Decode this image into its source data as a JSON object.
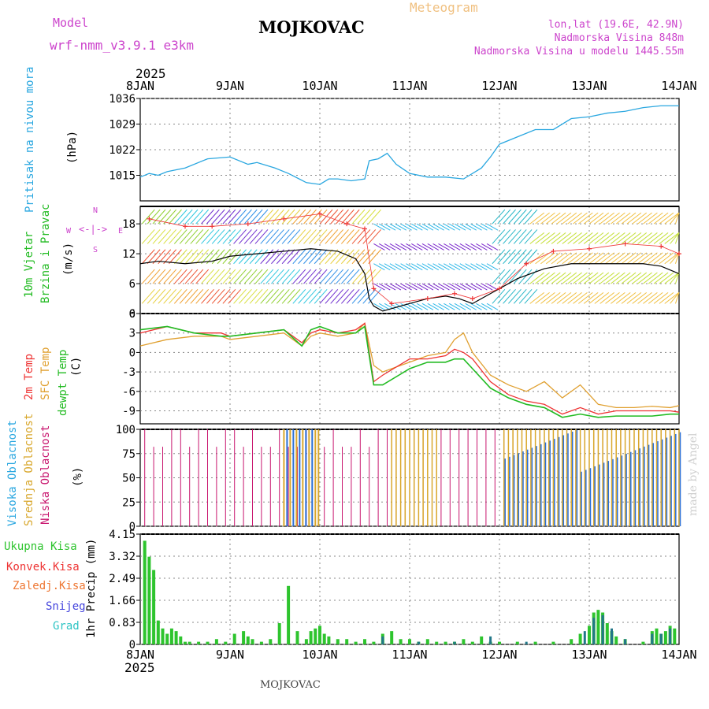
{
  "header": {
    "model_label": "Model",
    "model_name": "wrf-nmm_v3.9.1 e3km",
    "station": "MOJKOVAC",
    "title": "Meteogram",
    "coords": "lon,lat (19.6E, 42.9N)",
    "elevation": "Nadmorska Visina 848m",
    "model_elevation": "Nadmorska Visina u modelu 1445.55m",
    "footer_station": "MOJKOVAC",
    "watermark": "made by Angel",
    "year_top": "2025",
    "year_bottom": "2025"
  },
  "colors": {
    "pressure": "#2aa7e0",
    "wind_label": "#22bb22",
    "temp2m": "#ee3333",
    "sfc": "#e0a030",
    "dew": "#22bb22",
    "high": "#2a6fd6",
    "mid": "#d8a72c",
    "low": "#c8156e",
    "total": "#2ec42e",
    "conv": "#ee3333",
    "frozen": "#ee7733",
    "snow": "#4444dd",
    "hail": "#2ec4c4",
    "compass": "#cc44cc"
  },
  "chart_data": {
    "x_dates": [
      "8JAN",
      "9JAN",
      "10JAN",
      "11JAN",
      "12JAN",
      "13JAN",
      "14JAN"
    ],
    "pressure": {
      "type": "line",
      "name_label": "Pritisak na nivou mora",
      "unit": "(hPa)",
      "ylim": [
        1008,
        1036
      ],
      "ticks": [
        1015,
        1022,
        1029,
        1036
      ],
      "x": [
        0,
        0.1,
        0.2,
        0.3,
        0.5,
        0.75,
        1.0,
        1.2,
        1.3,
        1.5,
        1.65,
        1.85,
        2.0,
        2.1,
        2.2,
        2.35,
        2.5,
        2.55,
        2.65,
        2.75,
        2.85,
        3.0,
        3.2,
        3.4,
        3.6,
        3.8,
        3.9,
        4.0,
        4.2,
        4.4,
        4.6,
        4.8,
        5.0,
        5.2,
        5.4,
        5.6,
        5.8,
        5.95,
        6.0
      ],
      "y": [
        1014.5,
        1015.5,
        1015,
        1016,
        1017,
        1019.5,
        1020,
        1018,
        1018.5,
        1017,
        1015.5,
        1013,
        1012.5,
        1014,
        1014,
        1013.5,
        1014,
        1019,
        1019.5,
        1021,
        1018,
        1015.5,
        1014.5,
        1014.5,
        1014,
        1017,
        1020,
        1023.5,
        1025.5,
        1027.5,
        1027.5,
        1030.5,
        1031,
        1032,
        1032.5,
        1033.5,
        1034,
        1034,
        1034
      ]
    },
    "wind": {
      "type": "line",
      "name_label": [
        "10m Vjetar",
        "Brzina i Pravac"
      ],
      "unit": "(m/s)",
      "ylim": [
        0,
        21.5
      ],
      "ticks": [
        0,
        6,
        12,
        18
      ],
      "compass": {
        "n": "N",
        "s": "S",
        "w": "W",
        "e": "E"
      },
      "x": [
        0,
        0.2,
        0.5,
        0.8,
        1.0,
        1.3,
        1.6,
        1.9,
        2.2,
        2.4,
        2.5,
        2.55,
        2.6,
        2.7,
        2.8,
        3.0,
        3.2,
        3.4,
        3.55,
        3.7,
        3.8,
        4.0,
        4.2,
        4.5,
        4.8,
        5.0,
        5.3,
        5.6,
        5.8,
        6.0
      ],
      "y": [
        10,
        10.5,
        10,
        10.5,
        11.5,
        12,
        12.5,
        13,
        12.5,
        11,
        8,
        3,
        1.5,
        0.5,
        1,
        2,
        3,
        3.5,
        3,
        2,
        3,
        5,
        7,
        9,
        10,
        10,
        10,
        10,
        9.5,
        8
      ],
      "gust_x": [
        0.1,
        0.5,
        0.8,
        1.2,
        1.6,
        2.0,
        2.3,
        2.5,
        2.6,
        2.8,
        3.2,
        3.5,
        3.7,
        4.0,
        4.3,
        4.6,
        5.0,
        5.4,
        5.8,
        6.0
      ],
      "gust_y": [
        19,
        17.5,
        17.5,
        18,
        19,
        20,
        18,
        17,
        5,
        2,
        3,
        4,
        3,
        5,
        10,
        12.5,
        13,
        14,
        13.5,
        12
      ]
    },
    "temperature": {
      "type": "line",
      "labels": [
        "2m Temp",
        "SFC Temp",
        "dewpt Temp"
      ],
      "unit": "(C)",
      "ylim": [
        -11,
        6
      ],
      "ticks": [
        -9,
        -6,
        -3,
        0,
        3,
        6
      ],
      "x": [
        0,
        0.3,
        0.6,
        0.9,
        1.0,
        1.3,
        1.6,
        1.8,
        1.9,
        2.0,
        2.2,
        2.4,
        2.5,
        2.6,
        2.7,
        3.0,
        3.2,
        3.4,
        3.5,
        3.6,
        3.7,
        3.9,
        4.1,
        4.3,
        4.5,
        4.7,
        4.9,
        5.1,
        5.3,
        5.5,
        5.7,
        5.9,
        6.0
      ],
      "t2m": [
        3,
        4,
        3,
        3,
        2.5,
        3,
        3.5,
        1.5,
        3,
        3.5,
        3,
        3.5,
        4.5,
        -4.5,
        -3.5,
        -1,
        -1,
        -0.5,
        0.5,
        0,
        -1,
        -4.5,
        -6.5,
        -7.5,
        -8,
        -9.5,
        -8.5,
        -9.5,
        -9,
        -9,
        -9,
        -9,
        -9.2
      ],
      "sfc": [
        1,
        2,
        2.5,
        2.5,
        2,
        2.5,
        3,
        1,
        2.5,
        3,
        2.5,
        3,
        4.5,
        -2,
        -3,
        -1.5,
        -0.5,
        0,
        2,
        3,
        0,
        -3.5,
        -5,
        -6,
        -4.5,
        -7,
        -5,
        -8,
        -8.5,
        -8.5,
        -8.3,
        -8.5,
        -8.2
      ],
      "dew": [
        3.5,
        4,
        3,
        2.5,
        2.5,
        3,
        3.5,
        1,
        3.5,
        4,
        3,
        3,
        4,
        -5,
        -5,
        -2.5,
        -1.5,
        -1.5,
        -1,
        -1,
        -2.5,
        -5.5,
        -7,
        -8,
        -8.5,
        -10,
        -9.5,
        -10,
        -9.8,
        -9.8,
        -9.8,
        -9.5,
        -9.5
      ]
    },
    "clouds": {
      "type": "bar",
      "labels": [
        "Visoka Oblacnost",
        "Srednja Oblacnost",
        "Niska Oblacnost"
      ],
      "unit": "(%)",
      "ylim": [
        0,
        100
      ],
      "ticks": [
        0,
        25,
        50,
        75,
        100
      ]
    },
    "precip": {
      "type": "bar",
      "labels": [
        "Ukupna Kisa",
        "Konvek.Kisa",
        "Zaledj.Kisa",
        "Snijeg",
        "Grad"
      ],
      "unit": "1hr Precip (mm)",
      "ylim": [
        0,
        4.15
      ],
      "ticks": [
        "0",
        "0.83",
        "1.66",
        "2.49",
        "3.32",
        "4.15"
      ],
      "total_x": [
        0.05,
        0.1,
        0.15,
        0.2,
        0.25,
        0.3,
        0.35,
        0.4,
        0.45,
        0.5,
        0.55,
        0.65,
        0.75,
        0.85,
        0.95,
        1.05,
        1.15,
        1.2,
        1.25,
        1.35,
        1.45,
        1.55,
        1.65,
        1.75,
        1.85,
        1.9,
        1.95,
        2.0,
        2.05,
        2.1,
        2.2,
        2.3,
        2.4,
        2.5,
        2.6,
        2.7,
        2.8,
        2.9,
        3.0,
        3.1,
        3.2,
        3.3,
        3.4,
        3.5,
        3.6,
        3.7,
        3.8,
        3.9,
        4.0,
        4.2,
        4.4,
        4.6,
        4.8,
        4.9,
        5.0,
        5.05,
        5.1,
        5.15,
        5.2,
        5.25,
        5.3,
        5.4,
        5.6,
        5.7,
        5.75,
        5.8,
        5.85,
        5.9,
        5.95
      ],
      "total_y": [
        3.9,
        3.3,
        2.8,
        0.9,
        0.6,
        0.4,
        0.6,
        0.5,
        0.3,
        0.1,
        0.1,
        0.1,
        0.1,
        0.2,
        0.1,
        0.4,
        0.5,
        0.3,
        0.2,
        0.1,
        0.2,
        0.8,
        2.2,
        0.5,
        0.2,
        0.5,
        0.6,
        0.7,
        0.4,
        0.3,
        0.2,
        0.2,
        0.1,
        0.2,
        0.1,
        0.4,
        0.5,
        0.2,
        0.2,
        0.1,
        0.2,
        0.1,
        0.1,
        0.1,
        0.2,
        0.1,
        0.3,
        0.1,
        0.1,
        0.1,
        0.1,
        0.1,
        0.2,
        0.4,
        0.7,
        1.2,
        1.3,
        1.2,
        0.8,
        0.5,
        0.3,
        0.2,
        0.1,
        0.5,
        0.6,
        0.4,
        0.5,
        0.7,
        0.6
      ],
      "snow_x": [
        2.7,
        3.1,
        3.5,
        3.9,
        4.3,
        4.95,
        5.05,
        5.15,
        5.25,
        5.4,
        5.7,
        5.8,
        5.9
      ],
      "snow_y": [
        0.3,
        0.1,
        0.1,
        0.3,
        0.1,
        0.5,
        1.0,
        1.1,
        0.6,
        0.2,
        0.4,
        0.4,
        0.6
      ]
    }
  }
}
